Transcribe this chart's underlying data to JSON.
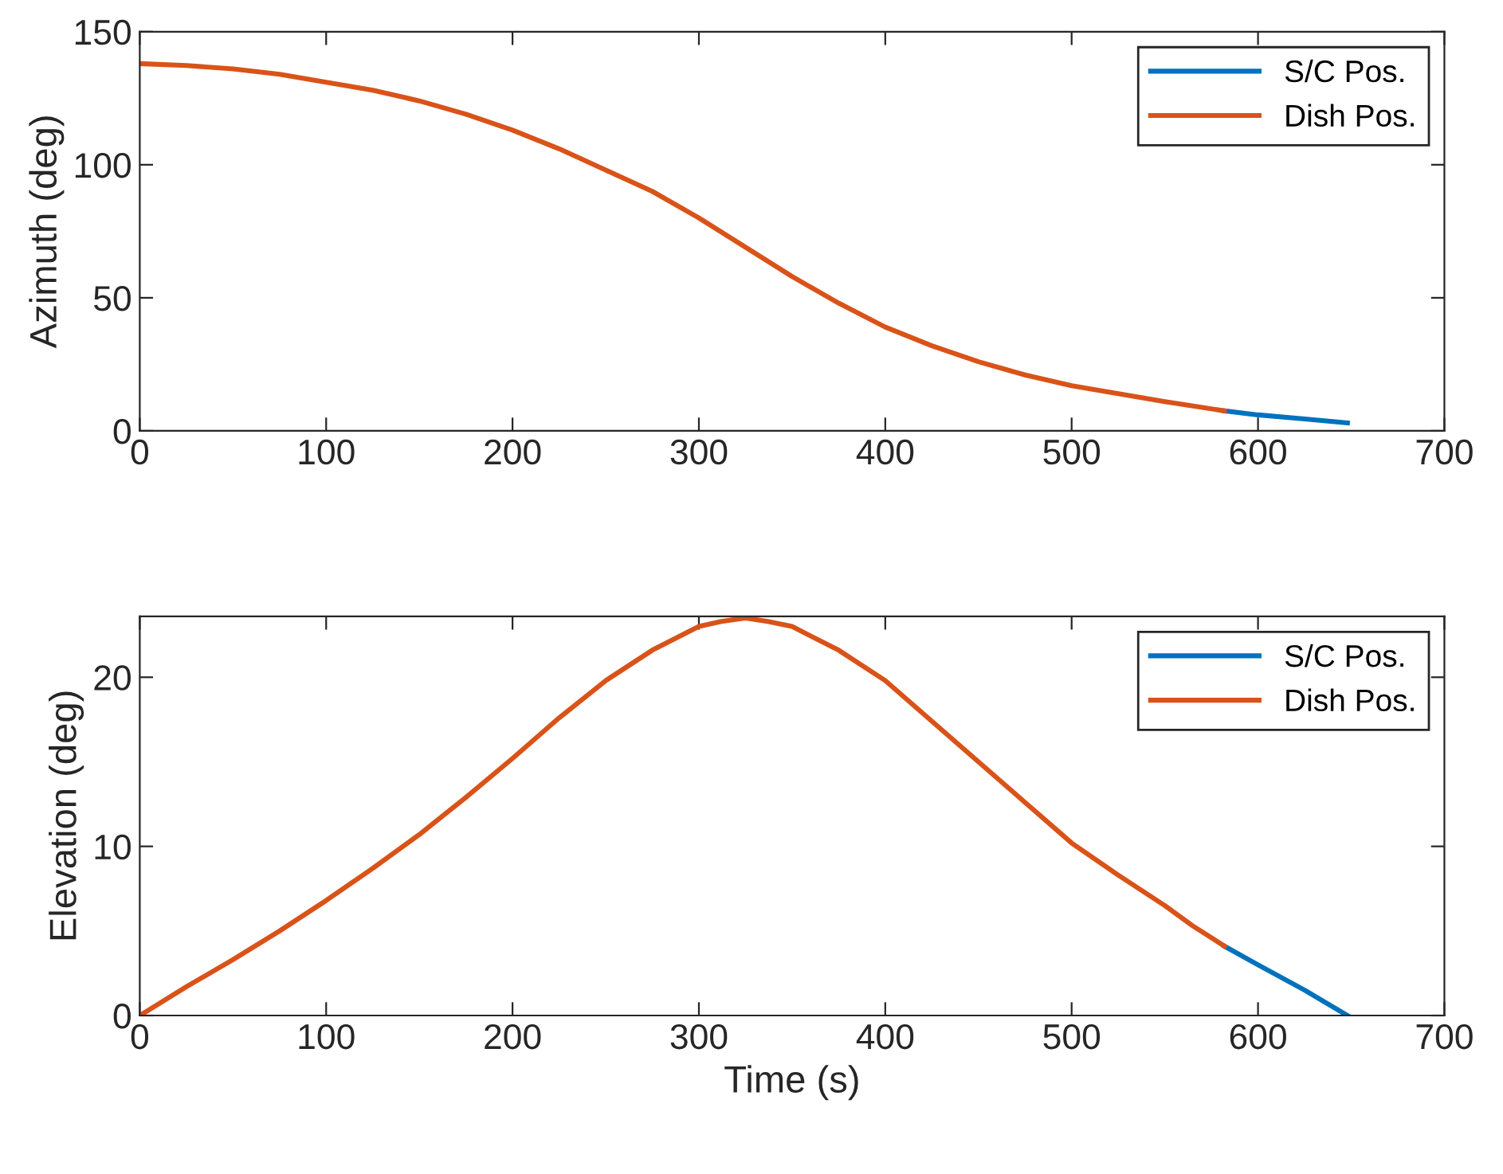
{
  "chart_data": [
    {
      "type": "line",
      "ylabel": "Azimuth (deg)",
      "xlim": [
        0,
        700
      ],
      "xticks": [
        0,
        100,
        200,
        300,
        400,
        500,
        600,
        700
      ],
      "ylim": [
        0,
        150
      ],
      "yticks": [
        0,
        50,
        100,
        150
      ],
      "grid": false,
      "legend": "top right",
      "series": [
        {
          "name": "S/C Pos.",
          "color": "#0072bd",
          "x": [
            582,
            600,
            625,
            648
          ],
          "values": [
            7.5,
            6,
            4.5,
            3
          ]
        },
        {
          "name": "Dish Pos.",
          "color": "#d95319",
          "x": [
            0,
            25,
            50,
            75,
            100,
            125,
            150,
            175,
            200,
            225,
            250,
            275,
            300,
            325,
            350,
            375,
            400,
            425,
            450,
            475,
            500,
            525,
            550,
            582
          ],
          "values": [
            138,
            137.3,
            136,
            134,
            131,
            128,
            124,
            119,
            113,
            106,
            98,
            90,
            80,
            69,
            58,
            48,
            39,
            32,
            26,
            21,
            17,
            14,
            11,
            7.5
          ]
        }
      ]
    },
    {
      "type": "line",
      "xlabel": "Time (s)",
      "ylabel": "Elevation (deg)",
      "xlim": [
        0,
        700
      ],
      "xticks": [
        0,
        100,
        200,
        300,
        400,
        500,
        600,
        700
      ],
      "ylim": [
        0,
        23.6
      ],
      "yticks": [
        0,
        10,
        20
      ],
      "grid": false,
      "legend": "top right",
      "series": [
        {
          "name": "S/C Pos.",
          "color": "#0072bd",
          "x": [
            582,
            600,
            625,
            648
          ],
          "values": [
            4.1,
            3.0,
            1.5,
            0
          ]
        },
        {
          "name": "Dish Pos.",
          "color": "#d95319",
          "x": [
            0,
            25,
            50,
            75,
            100,
            125,
            150,
            175,
            200,
            225,
            250,
            275,
            300,
            312,
            325,
            337,
            350,
            375,
            400,
            425,
            450,
            475,
            500,
            525,
            550,
            565,
            582
          ],
          "values": [
            0,
            1.7,
            3.3,
            5,
            6.8,
            8.7,
            10.7,
            12.9,
            15.2,
            17.6,
            19.8,
            21.6,
            23,
            23.3,
            23.5,
            23.3,
            23,
            21.6,
            19.8,
            17.4,
            15,
            12.6,
            10.2,
            8.3,
            6.5,
            5.3,
            4.1
          ]
        }
      ]
    }
  ]
}
